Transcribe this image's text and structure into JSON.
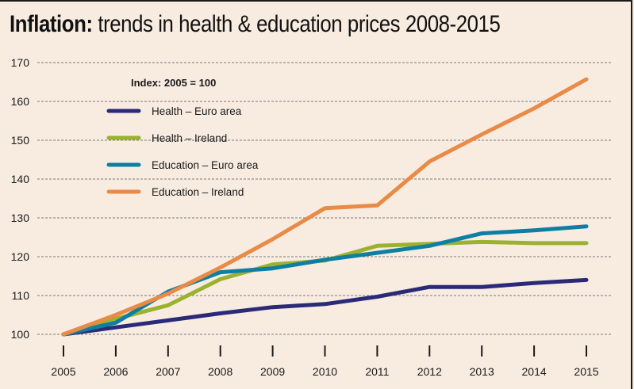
{
  "title": {
    "bold": "Inflation:",
    "rest": " trends in health & education prices 2008-2015"
  },
  "chart_data": {
    "type": "line",
    "title": "Inflation: trends in health & education prices 2008-2015",
    "subtitle": "Index: 2005 = 100",
    "xlabel": "",
    "ylabel": "",
    "x": [
      "2005",
      "2006",
      "2007",
      "2008",
      "2009",
      "2010",
      "2011",
      "2012",
      "2013",
      "2014",
      "2015"
    ],
    "yticks": [
      100,
      110,
      120,
      130,
      140,
      150,
      160,
      170
    ],
    "ylim": [
      100,
      170
    ],
    "grid": "horizontal-dashed",
    "legend_position": "top-left",
    "series": [
      {
        "name": "Health – Euro area",
        "color": "#2b2a78",
        "values": [
          100,
          101.8,
          103.6,
          105.4,
          107,
          107.8,
          109.7,
          112.2,
          112.2,
          113.2,
          114
        ]
      },
      {
        "name": "Health – Ireland",
        "color": "#9ab22e",
        "values": [
          100,
          104,
          107.5,
          114.2,
          118,
          119,
          122.8,
          123.3,
          123.8,
          123.5,
          123.5
        ]
      },
      {
        "name": "Education – Euro area",
        "color": "#0f7ea3",
        "values": [
          100,
          103,
          111,
          116,
          117,
          119.2,
          121,
          122.8,
          126,
          126.8,
          127.8
        ]
      },
      {
        "name": "Education – Ireland",
        "color": "#e98a47",
        "values": [
          100,
          105,
          110.5,
          117.2,
          124.5,
          132.5,
          133.2,
          144.5,
          151.5,
          158.2,
          165.7
        ]
      }
    ]
  }
}
